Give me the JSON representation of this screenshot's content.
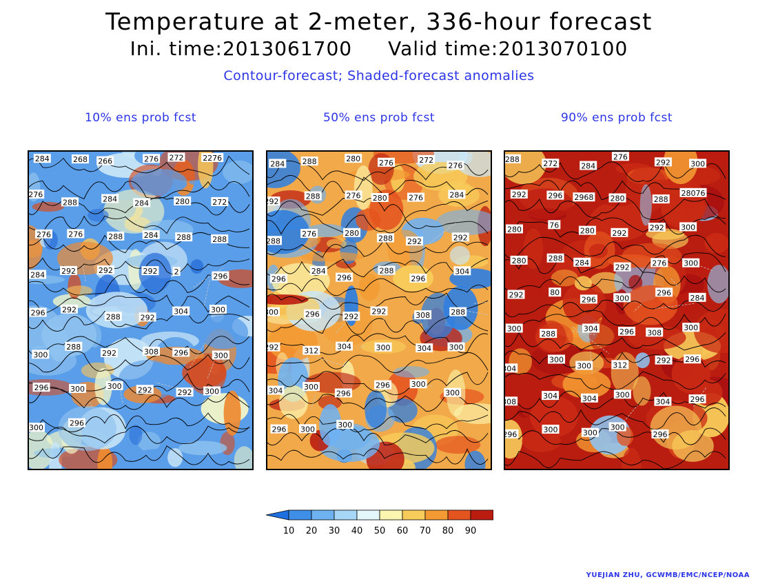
{
  "header": {
    "title": "Temperature at 2-meter, 336-hour forecast",
    "ini_time": "Ini. time:2013061700",
    "valid_time": "Valid time:2013070100",
    "description": "Contour-forecast; Shaded-forecast anomalies"
  },
  "panels": [
    {
      "title": "10% ens prob fcst",
      "base_color": "#5a9de8",
      "labels": [
        "284",
        "268",
        "266",
        "276",
        "272",
        "2276",
        "276",
        "288",
        "284",
        "284",
        "280",
        "272",
        "276",
        "276",
        "288",
        "284",
        "288",
        "288",
        "284",
        "292",
        "292",
        "292",
        "2",
        "296",
        "296",
        "292",
        "288",
        "292",
        "304",
        "300",
        "300",
        "288",
        "292",
        "308",
        "296",
        "300",
        "296",
        "300",
        "300",
        "292",
        "292",
        "300",
        "300",
        "296"
      ]
    },
    {
      "title": "50% ens prob fcst",
      "base_color": "#f2a94a",
      "labels": [
        "284",
        "288",
        "280",
        "276",
        "272",
        "276",
        "292",
        "288",
        "276",
        "280",
        "276",
        "284",
        "288",
        "276",
        "280",
        "288",
        "292",
        "292",
        "296",
        "284",
        "296",
        "288",
        "296",
        "304",
        "300",
        "296",
        "292",
        "292",
        "308",
        "288",
        "292",
        "312",
        "304",
        "300",
        "304",
        "300",
        "304",
        "300",
        "296",
        "296",
        "300",
        "300",
        "296",
        "300",
        "300"
      ]
    },
    {
      "title": "90% ens prob fcst",
      "base_color": "#b81d10",
      "labels": [
        "288",
        "272",
        "284",
        "276",
        "292",
        "300",
        "292",
        "296",
        "2968",
        "280",
        "288",
        "28076",
        "280",
        "76",
        "280",
        "292",
        "292",
        "300",
        "280",
        "288",
        "284",
        "292",
        "276",
        "300",
        "292",
        "80",
        "296",
        "300",
        "296",
        "284",
        "300",
        "288",
        "304",
        "296",
        "308",
        "300",
        "304",
        "300",
        "300",
        "312",
        "292",
        "296",
        "308",
        "304",
        "304",
        "300",
        "304",
        "296",
        "296",
        "300",
        "300",
        "300",
        "296"
      ]
    }
  ],
  "colorbar": {
    "ticks": [
      "10",
      "20",
      "30",
      "40",
      "50",
      "60",
      "70",
      "80",
      "90"
    ],
    "colors": [
      "#1e6fe0",
      "#3f8ee8",
      "#6fb2f1",
      "#a6d7f7",
      "#e3f7fb",
      "#fbf5b0",
      "#f8cc5a",
      "#f39a32",
      "#e4541f",
      "#bb1c10",
      "#a81010"
    ]
  },
  "credit": "YUEJIAN ZHU, GCWMB/EMC/NCEP/NOAA"
}
